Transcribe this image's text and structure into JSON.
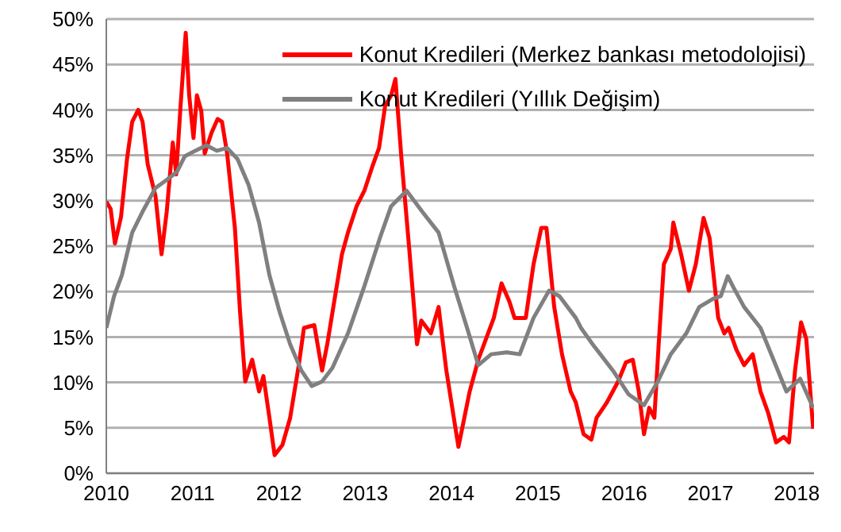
{
  "chart_data": {
    "type": "line",
    "xlim": [
      2010,
      2018.2
    ],
    "xticks": [
      2010,
      2011,
      2012,
      2013,
      2014,
      2015,
      2016,
      2017,
      2018
    ],
    "ylim": [
      0,
      50
    ],
    "yticks": [
      {
        "value": 0,
        "label": "0%"
      },
      {
        "value": 5,
        "label": "5%"
      },
      {
        "value": 10,
        "label": "10%"
      },
      {
        "value": 15,
        "label": "15%"
      },
      {
        "value": 20,
        "label": "20%"
      },
      {
        "value": 25,
        "label": "25%"
      },
      {
        "value": 30,
        "label": "30%"
      },
      {
        "value": 35,
        "label": "35%"
      },
      {
        "value": 40,
        "label": "40%"
      },
      {
        "value": 45,
        "label": "45%"
      },
      {
        "value": 50,
        "label": "50%"
      }
    ],
    "grid": "y",
    "legend": "top right",
    "marker": "none",
    "line_style": "solid",
    "series": [
      {
        "name": "Konut  Kredileri (Merkez bankası metodolojisi)",
        "color": "#ff0000",
        "x": [
          2010.0,
          2010.05,
          2010.1,
          2010.17,
          2010.24,
          2010.3,
          2010.37,
          2010.42,
          2010.48,
          2010.57,
          2010.64,
          2010.7,
          2010.77,
          2010.81,
          2010.86,
          2010.92,
          2010.96,
          2011.01,
          2011.05,
          2011.1,
          2011.14,
          2011.22,
          2011.29,
          2011.34,
          2011.4,
          2011.49,
          2011.55,
          2011.61,
          2011.69,
          2011.77,
          2011.82,
          2011.89,
          2011.95,
          2012.04,
          2012.13,
          2012.23,
          2012.29,
          2012.41,
          2012.5,
          2012.56,
          2012.62,
          2012.73,
          2012.8,
          2012.9,
          2012.99,
          2013.08,
          2013.16,
          2013.23,
          2013.3,
          2013.35,
          2013.42,
          2013.51,
          2013.6,
          2013.65,
          2013.76,
          2013.85,
          2013.94,
          2014.08,
          2014.21,
          2014.31,
          2014.4,
          2014.49,
          2014.58,
          2014.67,
          2014.73,
          2014.86,
          2014.95,
          2015.04,
          2015.1,
          2015.19,
          2015.28,
          2015.38,
          2015.44,
          2015.53,
          2015.62,
          2015.68,
          2015.8,
          2015.93,
          2016.02,
          2016.1,
          2016.17,
          2016.23,
          2016.29,
          2016.35,
          2016.4,
          2016.46,
          2016.54,
          2016.57,
          2016.66,
          2016.75,
          2016.83,
          2016.92,
          2016.99,
          2017.09,
          2017.16,
          2017.21,
          2017.3,
          2017.39,
          2017.49,
          2017.58,
          2017.67,
          2017.76,
          2017.85,
          2017.91,
          2017.98,
          2018.05,
          2018.11,
          2018.19
        ],
        "values": [
          29.9,
          29.1,
          25.3,
          28.2,
          34.6,
          38.7,
          40.0,
          38.7,
          34.0,
          30.5,
          24.1,
          28.8,
          36.4,
          32.9,
          40.4,
          48.5,
          41.6,
          36.9,
          41.6,
          39.9,
          35.2,
          37.5,
          39.0,
          38.7,
          35.2,
          27.0,
          17.7,
          10.1,
          12.5,
          9.0,
          10.7,
          6.1,
          2.0,
          3.1,
          6.1,
          11.9,
          16.0,
          16.3,
          11.3,
          14.2,
          17.7,
          24.1,
          26.5,
          29.4,
          31.1,
          33.7,
          35.8,
          40.4,
          41.6,
          43.4,
          34.6,
          24.7,
          14.2,
          16.8,
          15.4,
          18.3,
          11.3,
          2.9,
          9.0,
          12.5,
          14.8,
          17.1,
          20.9,
          18.9,
          17.1,
          17.1,
          23.0,
          27.0,
          27.0,
          18.3,
          13.1,
          9.0,
          7.8,
          4.3,
          3.7,
          6.1,
          7.8,
          10.1,
          12.2,
          12.5,
          9.0,
          4.3,
          7.2,
          6.1,
          14.2,
          23.0,
          24.7,
          27.6,
          24.1,
          20.1,
          23.0,
          28.1,
          25.9,
          17.1,
          15.4,
          16.0,
          13.6,
          11.9,
          13.1,
          9.0,
          6.6,
          3.4,
          4.0,
          3.4,
          11.3,
          16.6,
          14.8,
          4.9
        ]
      },
      {
        "name": "Konut Kredileri (Yıllık Değişim)",
        "color": "#808080",
        "x": [
          2010.0,
          2010.09,
          2010.18,
          2010.3,
          2010.42,
          2010.57,
          2010.7,
          2010.82,
          2010.91,
          2011.03,
          2011.16,
          2011.28,
          2011.4,
          2011.52,
          2011.65,
          2011.77,
          2011.89,
          2012.01,
          2012.13,
          2012.26,
          2012.38,
          2012.5,
          2012.62,
          2012.8,
          2012.99,
          2013.17,
          2013.3,
          2013.48,
          2013.66,
          2013.85,
          2014.03,
          2014.18,
          2014.31,
          2014.46,
          2014.64,
          2014.79,
          2014.95,
          2015.13,
          2015.25,
          2015.44,
          2015.5,
          2015.65,
          2015.87,
          2016.05,
          2016.23,
          2016.39,
          2016.54,
          2016.72,
          2016.87,
          2017.03,
          2017.12,
          2017.2,
          2017.27,
          2017.39,
          2017.58,
          2017.73,
          2017.88,
          2018.04,
          2018.19
        ],
        "values": [
          16.0,
          19.5,
          21.8,
          26.5,
          28.8,
          31.4,
          32.3,
          33.2,
          34.9,
          35.5,
          36.1,
          35.5,
          35.8,
          34.6,
          31.7,
          27.6,
          21.8,
          17.7,
          14.2,
          11.3,
          9.6,
          10.1,
          11.6,
          15.4,
          20.6,
          25.9,
          29.4,
          31.1,
          28.8,
          26.5,
          20.6,
          16.0,
          11.9,
          13.1,
          13.3,
          13.1,
          17.1,
          20.1,
          19.5,
          17.1,
          16.0,
          14.0,
          11.3,
          8.7,
          7.5,
          10.1,
          13.1,
          15.4,
          18.3,
          19.2,
          19.5,
          21.7,
          20.4,
          18.3,
          16.0,
          12.5,
          9.0,
          10.4,
          7.2
        ]
      }
    ]
  }
}
